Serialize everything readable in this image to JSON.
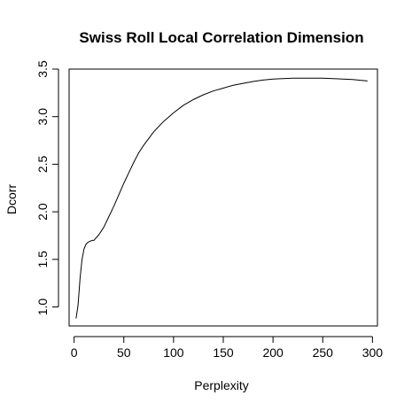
{
  "chart_data": {
    "type": "line",
    "title": "Swiss Roll Local Correlation Dimension",
    "xlabel": "Perplexity",
    "ylabel": "Dcorr",
    "xlim": [
      -5,
      305
    ],
    "ylim": [
      0.8,
      3.5
    ],
    "xticks": [
      0,
      50,
      100,
      150,
      200,
      250,
      300
    ],
    "yticks": [
      1.0,
      1.5,
      2.0,
      2.5,
      3.0,
      3.5
    ],
    "xtick_labels": [
      "0",
      "50",
      "100",
      "150",
      "200",
      "250",
      "300"
    ],
    "ytick_labels": [
      "1.0",
      "1.5",
      "2.0",
      "2.5",
      "3.0",
      "3.5"
    ],
    "grid": false,
    "series": [
      {
        "x": [
          2,
          4,
          6,
          8,
          10,
          12,
          14,
          16,
          18,
          20,
          25,
          30,
          35,
          40,
          45,
          50,
          55,
          60,
          65,
          70,
          80,
          90,
          100,
          110,
          120,
          130,
          140,
          150,
          160,
          170,
          180,
          190,
          200,
          210,
          220,
          230,
          240,
          250,
          260,
          270,
          280,
          290,
          295
        ],
        "y": [
          0.88,
          1.02,
          1.3,
          1.5,
          1.61,
          1.66,
          1.68,
          1.69,
          1.7,
          1.7,
          1.76,
          1.84,
          1.95,
          2.06,
          2.18,
          2.3,
          2.41,
          2.52,
          2.62,
          2.7,
          2.84,
          2.95,
          3.04,
          3.12,
          3.18,
          3.23,
          3.27,
          3.3,
          3.33,
          3.35,
          3.37,
          3.385,
          3.395,
          3.4,
          3.405,
          3.405,
          3.405,
          3.405,
          3.4,
          3.395,
          3.39,
          3.38,
          3.375
        ]
      }
    ]
  }
}
